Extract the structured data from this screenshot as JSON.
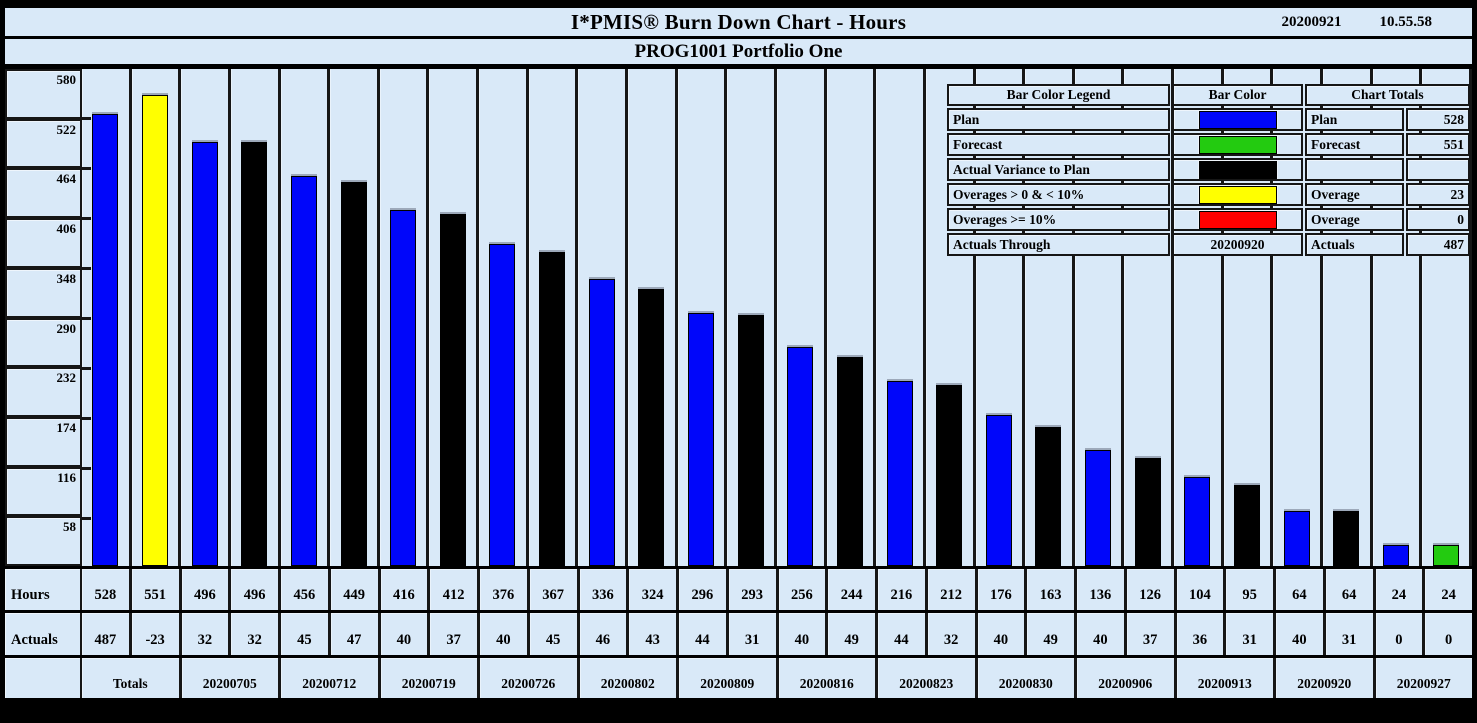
{
  "header": {
    "date": "20200921",
    "time": "10.55.58"
  },
  "colors": {
    "background": "#d9e9f8",
    "plan": "#0006fa",
    "forecast": "#23cb10",
    "actual_variance": "#000000",
    "overage_low": "#ffff00",
    "overage_high": "#ff0000",
    "grid": "#161616"
  },
  "legend": {
    "headers": [
      "Bar Color Legend",
      "Bar Color",
      "Chart Totals"
    ],
    "rows": [
      {
        "label": "Plan",
        "swatch": "plan",
        "swatch_text": "",
        "total_label": "Plan",
        "total_value": "528"
      },
      {
        "label": "Forecast",
        "swatch": "forecast",
        "swatch_text": "",
        "total_label": "Forecast",
        "total_value": "551"
      },
      {
        "label": "Actual Variance to Plan",
        "swatch": "actual_variance",
        "swatch_text": "",
        "total_label": "",
        "total_value": ""
      },
      {
        "label": "Overages > 0 & < 10%",
        "swatch": "overage_low",
        "swatch_text": "",
        "total_label": "Overage",
        "total_value": "23"
      },
      {
        "label": "Overages >= 10%",
        "swatch": "overage_high",
        "swatch_text": "",
        "total_label": "Overage",
        "total_value": "0"
      },
      {
        "label": "Actuals Through",
        "swatch": null,
        "swatch_text": "20200920",
        "total_label": "Actuals",
        "total_value": "487"
      }
    ]
  },
  "chart_data": {
    "type": "bar",
    "title": "I*PMIS® Burn Down Chart - Hours",
    "subtitle": "PROG1001 Portfolio One",
    "ylabel": "",
    "xlabel": "",
    "ylim": [
      0,
      580
    ],
    "yticks": [
      580,
      522,
      464,
      406,
      348,
      290,
      232,
      174,
      116,
      58
    ],
    "grid": "cell-borders",
    "legend_position": "top-right-overlay",
    "bars": [
      {
        "value": 528,
        "color": "plan"
      },
      {
        "value": 551,
        "color": "overage_low"
      },
      {
        "value": 496,
        "color": "plan"
      },
      {
        "value": 496,
        "color": "actual_variance"
      },
      {
        "value": 456,
        "color": "plan"
      },
      {
        "value": 449,
        "color": "actual_variance"
      },
      {
        "value": 416,
        "color": "plan"
      },
      {
        "value": 412,
        "color": "actual_variance"
      },
      {
        "value": 376,
        "color": "plan"
      },
      {
        "value": 367,
        "color": "actual_variance"
      },
      {
        "value": 336,
        "color": "plan"
      },
      {
        "value": 324,
        "color": "actual_variance"
      },
      {
        "value": 296,
        "color": "plan"
      },
      {
        "value": 293,
        "color": "actual_variance"
      },
      {
        "value": 256,
        "color": "plan"
      },
      {
        "value": 244,
        "color": "actual_variance"
      },
      {
        "value": 216,
        "color": "plan"
      },
      {
        "value": 212,
        "color": "actual_variance"
      },
      {
        "value": 176,
        "color": "plan"
      },
      {
        "value": 163,
        "color": "actual_variance"
      },
      {
        "value": 136,
        "color": "plan"
      },
      {
        "value": 126,
        "color": "actual_variance"
      },
      {
        "value": 104,
        "color": "plan"
      },
      {
        "value": 95,
        "color": "actual_variance"
      },
      {
        "value": 64,
        "color": "plan"
      },
      {
        "value": 64,
        "color": "actual_variance"
      },
      {
        "value": 24,
        "color": "plan"
      },
      {
        "value": 24,
        "color": "forecast"
      }
    ],
    "table": {
      "hours_label": "Hours",
      "hours": [
        528,
        551,
        496,
        496,
        456,
        449,
        416,
        412,
        376,
        367,
        336,
        324,
        296,
        293,
        256,
        244,
        216,
        212,
        176,
        163,
        136,
        126,
        104,
        95,
        64,
        64,
        24,
        24
      ],
      "actuals_label": "Actuals",
      "actuals": [
        487,
        -23,
        32,
        32,
        45,
        47,
        40,
        37,
        40,
        45,
        46,
        43,
        44,
        31,
        40,
        49,
        44,
        32,
        40,
        49,
        40,
        37,
        36,
        31,
        40,
        31,
        0,
        0
      ],
      "groups": [
        "Totals",
        "20200705",
        "20200712",
        "20200719",
        "20200726",
        "20200802",
        "20200809",
        "20200816",
        "20200823",
        "20200830",
        "20200906",
        "20200913",
        "20200920",
        "20200927"
      ]
    }
  }
}
